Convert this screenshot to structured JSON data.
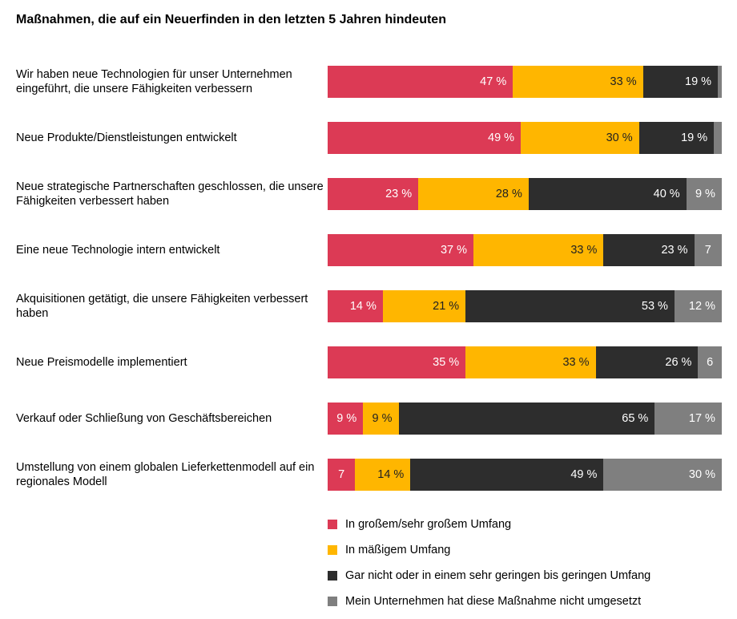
{
  "chart_data": {
    "type": "bar",
    "orientation": "horizontal",
    "stacked": true,
    "title": "Maßnahmen, die auf ein Neuerfinden in den letzten 5 Jahren hindeuten",
    "xlim": [
      0,
      100
    ],
    "legend_position": "bottom",
    "series": [
      {
        "name": "In großem/sehr großem Umfang",
        "color": "#dc3a55"
      },
      {
        "name": "In mäßigem Umfang",
        "color": "#ffb600"
      },
      {
        "name": "Gar nicht oder in einem sehr geringen bis geringen Umfang",
        "color": "#2d2d2d"
      },
      {
        "name": "Mein Unternehmen hat diese Maßnahme nicht umgesetzt",
        "color": "#7f7f7f"
      }
    ],
    "categories": [
      "Wir haben neue Technologien für unser Unternehmen eingeführt, die unsere Fähigkeiten verbessern",
      "Neue Produkte/Dienstleistungen entwickelt",
      "Neue strategische Partnerschaften geschlossen, die unsere Fähigkeiten verbessert haben",
      "Eine neue Technologie intern entwickelt",
      "Akquisitionen getätigt, die unsere Fähigkeiten verbessert haben",
      "Neue Preismodelle implementiert",
      "Verkauf oder Schließung von Geschäftsbereichen",
      "Umstellung von einem globalen Lieferkettenmodell auf ein regionales Modell"
    ],
    "values": [
      [
        47,
        33,
        19,
        1
      ],
      [
        49,
        30,
        19,
        2
      ],
      [
        23,
        28,
        40,
        9
      ],
      [
        37,
        33,
        23,
        7
      ],
      [
        14,
        21,
        53,
        12
      ],
      [
        35,
        33,
        26,
        6
      ],
      [
        9,
        9,
        65,
        17
      ],
      [
        7,
        14,
        49,
        30
      ]
    ],
    "labels": [
      [
        "47 %",
        "33 %",
        "19 %",
        ""
      ],
      [
        "49 %",
        "30 %",
        "19 %",
        ""
      ],
      [
        "23 %",
        "28 %",
        "40 %",
        "9 %"
      ],
      [
        "37 %",
        "33 %",
        "23 %",
        "7"
      ],
      [
        "14 %",
        "21 %",
        "53 %",
        "12 %"
      ],
      [
        "35 %",
        "33 %",
        "26 %",
        "6"
      ],
      [
        "9 %",
        "9 %",
        "65 %",
        "17 %"
      ],
      [
        "7",
        "14 %",
        "49 %",
        "30 %"
      ]
    ]
  }
}
